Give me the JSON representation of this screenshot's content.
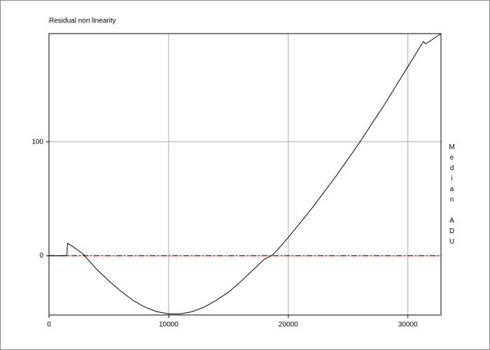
{
  "chart_data": {
    "type": "line",
    "title": "Residual non linearity",
    "y_label": "Median ADU",
    "x": [
      0,
      1500,
      1550,
      2000,
      2800,
      4000,
      5000,
      6000,
      7000,
      8000,
      9000,
      10000,
      11000,
      12000,
      13000,
      14000,
      15000,
      16000,
      17000,
      18000,
      18600,
      19000,
      20000,
      21000,
      22000,
      23000,
      24000,
      25000,
      26000,
      27000,
      28000,
      29000,
      30000,
      31000,
      31300,
      31500,
      32768
    ],
    "series": [
      {
        "color": "#000000",
        "values": [
          0,
          0,
          11,
          8,
          2,
          -12,
          -22,
          -31,
          -39,
          -45,
          -49,
          -51,
          -51,
          -49,
          -45,
          -39,
          -32,
          -23,
          -13,
          -3,
          0,
          4,
          16,
          29,
          42,
          56,
          70,
          85,
          100,
          116,
          132,
          149,
          166,
          183,
          188,
          186,
          195
        ]
      }
    ],
    "xlim": [
      0,
      32768
    ],
    "ylim": [
      -52,
      195
    ],
    "xticks": [
      0,
      10000,
      20000,
      30000
    ],
    "yticks": [
      0,
      100
    ],
    "grid": true,
    "reference_line": {
      "value": 0,
      "color": "#cc0000"
    }
  }
}
